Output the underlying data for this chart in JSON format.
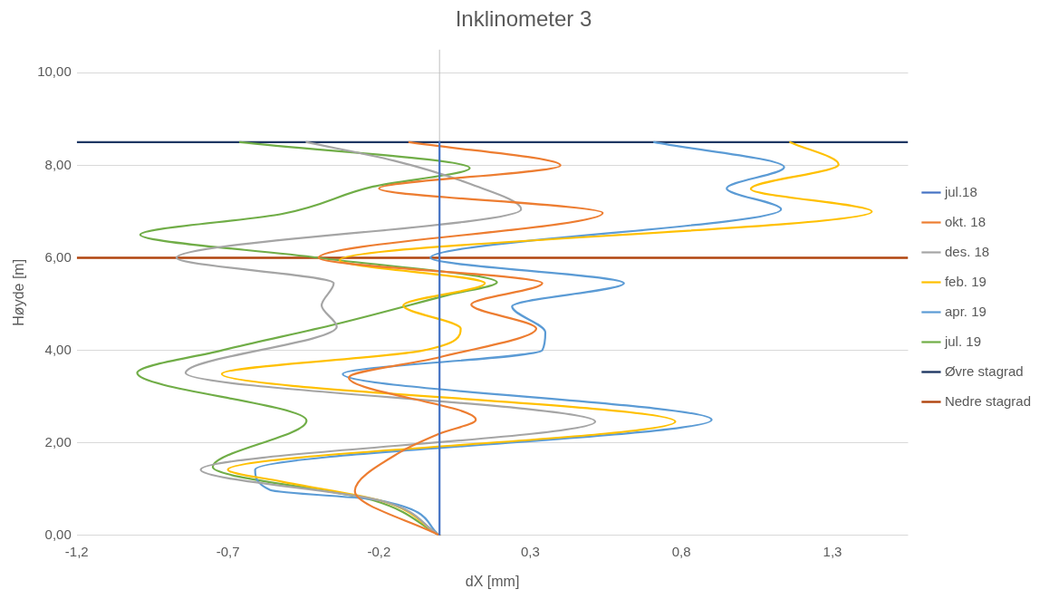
{
  "chart_data": {
    "type": "line",
    "title": "Inklinometer 3",
    "xlabel": "dX [mm]",
    "ylabel": "Høyde [m]",
    "xlim": [
      -1.2,
      1.55
    ],
    "ylim": [
      0,
      10.5
    ],
    "xticks": [
      {
        "value": -1.2,
        "label": "-1,2"
      },
      {
        "value": -0.7,
        "label": "-0,7"
      },
      {
        "value": -0.2,
        "label": "-0,2"
      },
      {
        "value": 0.3,
        "label": "0,3"
      },
      {
        "value": 0.8,
        "label": "0,8"
      },
      {
        "value": 1.3,
        "label": "1,3"
      }
    ],
    "yticks": [
      {
        "value": 0,
        "label": "0,00"
      },
      {
        "value": 2,
        "label": "2,00"
      },
      {
        "value": 4,
        "label": "4,00"
      },
      {
        "value": 6,
        "label": "6,00"
      },
      {
        "value": 8,
        "label": "8,00"
      },
      {
        "value": 10,
        "label": "10,00"
      }
    ],
    "grid": "y",
    "legend": "right",
    "marker": "none",
    "line_style": "solid",
    "series": [
      {
        "name": "jul.18",
        "color": "#4472c4",
        "x": [
          0,
          0
        ],
        "values": [
          0,
          8.5
        ]
      },
      {
        "name": "okt. 18",
        "color": "#ed7d31",
        "x": [
          0,
          -0.28,
          -0.13,
          0.0,
          0.12,
          -0.3,
          0.0,
          0.32,
          0.105,
          0.34,
          -0.4,
          0.54,
          -0.2,
          0.4,
          -0.1
        ],
        "values": [
          0,
          0.96,
          1.8,
          2.2,
          2.5,
          3.41,
          3.85,
          4.47,
          4.99,
          5.45,
          6.0,
          6.97,
          7.5,
          8.0,
          8.5
        ]
      },
      {
        "name": "des. 18",
        "color": "#a5a5a5",
        "x": [
          0,
          -0.2,
          -0.79,
          0.515,
          -0.84,
          -0.34,
          -0.39,
          -0.35,
          -0.87,
          0.27,
          0.1,
          -0.15,
          -0.44
        ],
        "values": [
          0,
          0.76,
          1.42,
          2.46,
          3.51,
          4.51,
          4.97,
          5.45,
          6.0,
          7.05,
          7.6,
          8.1,
          8.5
        ]
      },
      {
        "name": "feb. 19",
        "color": "#ffc000",
        "x": [
          0,
          -0.2,
          -0.52,
          -0.7,
          0.78,
          -0.72,
          -0.06,
          0.07,
          -0.12,
          0.15,
          -0.33,
          1.43,
          1.03,
          1.32,
          1.16
        ],
        "values": [
          0,
          0.76,
          1.16,
          1.42,
          2.46,
          3.49,
          3.99,
          4.47,
          4.97,
          5.45,
          5.95,
          7.0,
          7.49,
          8.02,
          8.5
        ]
      },
      {
        "name": "apr. 19",
        "color": "#5b9bd5",
        "x": [
          0,
          -0.2,
          -0.56,
          -0.61,
          0.9,
          -0.32,
          0.34,
          0.35,
          0.24,
          0.61,
          -0.03,
          1.13,
          0.95,
          1.14,
          0.71
        ],
        "values": [
          0,
          0.76,
          0.98,
          1.42,
          2.5,
          3.49,
          4.0,
          4.39,
          4.95,
          5.45,
          6.0,
          7.05,
          7.5,
          7.96,
          8.5
        ]
      },
      {
        "name": "jul. 19",
        "color": "#70ad47",
        "x": [
          0,
          -0.22,
          -0.75,
          -0.44,
          -1.0,
          -0.72,
          -0.34,
          0.03,
          0.19,
          -0.4,
          -0.99,
          -0.52,
          -0.22,
          0.1,
          -0.66
        ],
        "values": [
          0,
          0.76,
          1.48,
          2.48,
          3.51,
          4.0,
          4.57,
          5.2,
          5.47,
          6.0,
          6.5,
          6.95,
          7.54,
          7.94,
          8.5
        ]
      }
    ],
    "ref_lines": [
      {
        "axis": "y",
        "value": 8.5,
        "label": "Øvre stagrad",
        "color": "#203864"
      },
      {
        "axis": "y",
        "value": 6,
        "label": "Nedre stagrad",
        "color": "#b0440e"
      }
    ]
  }
}
